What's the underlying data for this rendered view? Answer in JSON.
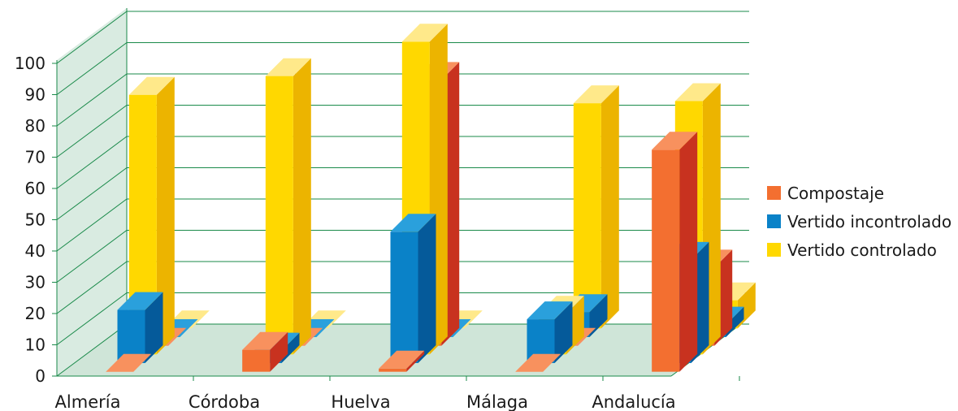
{
  "chart_data": {
    "type": "bar",
    "categories": [
      "Almería",
      "Córdoba",
      "Huelva",
      "Málaga",
      "Andalucía"
    ],
    "series": [
      {
        "name": "Compostaje",
        "values": [
          0,
          7,
          1,
          0,
          71
        ],
        "colors": [
          "#f36f30",
          "#c8321f",
          "#f8915e"
        ]
      },
      {
        "name": "Vertido incontrolado",
        "values": [
          17,
          4,
          42,
          14,
          33
        ],
        "colors": [
          "#0a82c8",
          "#055a9a",
          "#2aa0dc"
        ]
      },
      {
        "name": "Vertido controlado",
        "values": [
          83,
          89,
          100,
          13,
          81
        ],
        "colors": [
          "#ffd800",
          "#ecb400",
          "#ffe98a"
        ]
      },
      {
        "name": "",
        "values": [
          0,
          0,
          85,
          0,
          25
        ],
        "colors": [
          "#f36f30",
          "#c8321f",
          "#f8915e"
        ]
      },
      {
        "name": "",
        "values": [
          0,
          0,
          0,
          8,
          4
        ],
        "colors": [
          "#0a82c8",
          "#055a9a",
          "#2aa0dc"
        ]
      },
      {
        "name": "",
        "values": [
          0,
          0,
          0,
          72,
          9
        ],
        "colors": [
          "#ffd800",
          "#ecb400",
          "#ffe98a"
        ]
      }
    ],
    "yticks": [
      0,
      10,
      20,
      30,
      40,
      50,
      60,
      70,
      80,
      90,
      100
    ],
    "ylim": [
      0,
      100
    ],
    "grid": true,
    "legend_position": "right"
  },
  "legend": {
    "items": [
      {
        "label": "Compostaje",
        "color": "#f36f30"
      },
      {
        "label": "Vertido incontrolado",
        "color": "#0a82c8"
      },
      {
        "label": "Vertido controlado",
        "color": "#ffd800"
      }
    ]
  },
  "colors": {
    "grid_line": "#1a8a4a",
    "wall": "#d9ebe1",
    "floor": "#cfe5d8"
  }
}
